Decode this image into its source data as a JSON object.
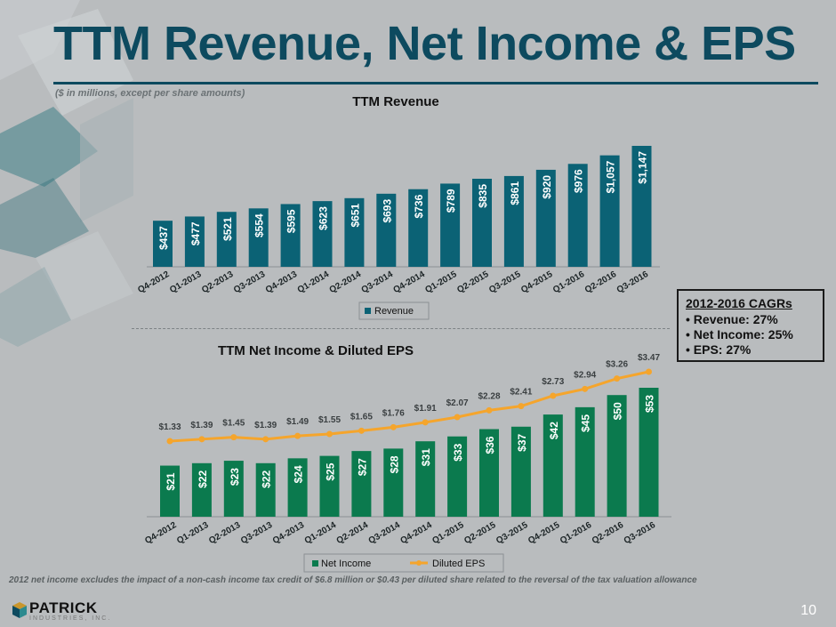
{
  "slide": {
    "title": "TTM Revenue, Net Income & EPS",
    "subtitle": "($ in millions, except per share amounts)",
    "footnote": "2012 net income excludes the impact of a non-cash income tax credit of $6.8 million or $0.43 per diluted share related to the reversal of the tax valuation allowance",
    "page_number": "10",
    "logo_text": "PATRICK",
    "logo_subtext": "INDUSTRIES, INC."
  },
  "cagr_box": {
    "heading": "2012-2016 CAGRs",
    "items": [
      "• Revenue: 27%",
      "• Net Income: 25%",
      "• EPS: 27%"
    ]
  },
  "colors": {
    "title": "#0d4a5f",
    "revenue_bar": "#0b6275",
    "net_income_bar": "#0b7a4e",
    "eps_line": "#f5a52c",
    "background": "#b9bcbe"
  },
  "chart_data": [
    {
      "type": "bar",
      "title": "TTM Revenue",
      "categories": [
        "Q4-2012",
        "Q1-2013",
        "Q2-2013",
        "Q3-2013",
        "Q4-2013",
        "Q1-2014",
        "Q2-2014",
        "Q3-2014",
        "Q4-2014",
        "Q1-2015",
        "Q2-2015",
        "Q3-2015",
        "Q4-2015",
        "Q1-2016",
        "Q2-2016",
        "Q3-2016"
      ],
      "series": [
        {
          "name": "Revenue",
          "values": [
            437,
            477,
            521,
            554,
            595,
            623,
            651,
            693,
            736,
            789,
            835,
            861,
            920,
            976,
            1057,
            1147
          ],
          "labels": [
            "$437",
            "$477",
            "$521",
            "$554",
            "$595",
            "$623",
            "$651",
            "$693",
            "$736",
            "$789",
            "$835",
            "$861",
            "$920",
            "$976",
            "$1,057",
            "$1,147"
          ]
        }
      ],
      "legend": "bottom"
    },
    {
      "type": "bar",
      "title": "TTM Net Income & Diluted EPS",
      "categories": [
        "Q4-2012",
        "Q1-2013",
        "Q2-2013",
        "Q3-2013",
        "Q4-2013",
        "Q1-2014",
        "Q2-2014",
        "Q3-2014",
        "Q4-2014",
        "Q1-2015",
        "Q2-2015",
        "Q3-2015",
        "Q4-2015",
        "Q1-2016",
        "Q2-2016",
        "Q3-2016"
      ],
      "series": [
        {
          "name": "Net Income",
          "type": "bar",
          "values": [
            21,
            22,
            23,
            22,
            24,
            25,
            27,
            28,
            31,
            33,
            36,
            37,
            42,
            45,
            50,
            53
          ],
          "labels": [
            "$21",
            "$22",
            "$23",
            "$22",
            "$24",
            "$25",
            "$27",
            "$28",
            "$31",
            "$33",
            "$36",
            "$37",
            "$42",
            "$45",
            "$50",
            "$53"
          ]
        },
        {
          "name": "Diluted EPS",
          "type": "line",
          "values": [
            1.33,
            1.39,
            1.45,
            1.39,
            1.49,
            1.55,
            1.65,
            1.76,
            1.91,
            2.07,
            2.28,
            2.41,
            2.73,
            2.94,
            3.26,
            3.47
          ],
          "labels": [
            "$1.33",
            "$1.39",
            "$1.45",
            "$1.39",
            "$1.49",
            "$1.55",
            "$1.65",
            "$1.76",
            "$1.91",
            "$2.07",
            "$2.28",
            "$2.41",
            "$2.73",
            "$2.94",
            "$3.26",
            "$3.47"
          ]
        }
      ],
      "legend": "bottom"
    }
  ]
}
